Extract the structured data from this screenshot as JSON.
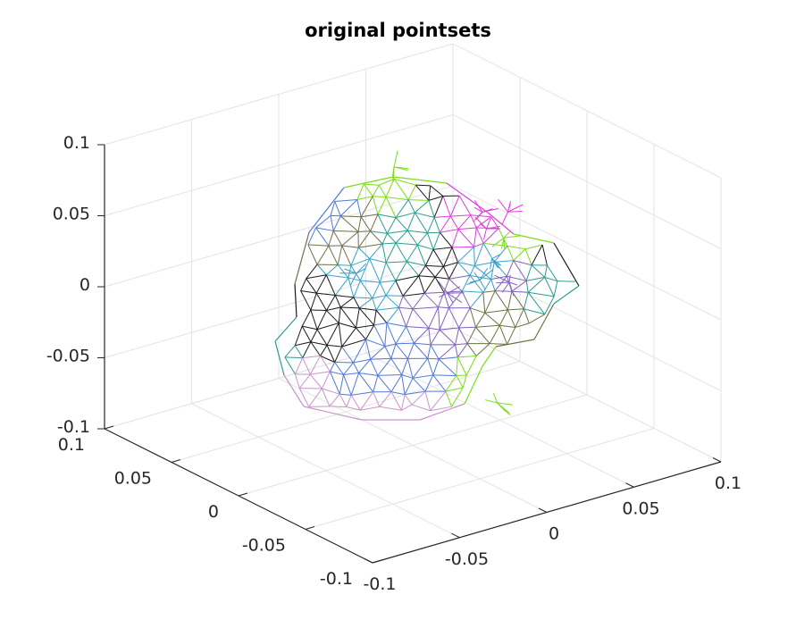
{
  "chart_data": {
    "type": "scatter",
    "subtype": "3d-wireframe-mesh",
    "title": "original pointsets",
    "xlim": [
      -0.1,
      0.1
    ],
    "ylim": [
      -0.1,
      0.1
    ],
    "zlim": [
      -0.1,
      0.1
    ],
    "x_ticks": [
      -0.1,
      -0.05,
      0,
      0.05,
      0.1
    ],
    "y_ticks": [
      -0.1,
      -0.05,
      0,
      0.05,
      0.1
    ],
    "z_ticks": [
      -0.1,
      -0.05,
      0,
      0.05,
      0.1
    ],
    "x_tick_labels": [
      "-0.1",
      "-0.05",
      "0",
      "0.05",
      "0.1"
    ],
    "y_tick_labels": [
      "-0.1",
      "-0.05",
      "0",
      "0.05",
      "0.1"
    ],
    "z_tick_labels": [
      "-0.1",
      "-0.05",
      "0",
      "0.05",
      "0.1"
    ],
    "grid": true,
    "box": "open-3d-axes",
    "series_colors": [
      "#1a1a1a",
      "#3aa0c8",
      "#2a9d8f",
      "#6f6f45",
      "#c896c8",
      "#5078d8",
      "#e23ce2",
      "#7cdc1c",
      "#8060c0"
    ],
    "mesh_regions": [
      {
        "name": "black",
        "color": "#1a1a1a",
        "points": [
          [
            -0.03,
            0.02,
            0.0
          ],
          [
            0.05,
            0.04,
            0.06
          ],
          [
            0.02,
            -0.09,
            0.07
          ],
          [
            0.0,
            -0.02,
            0.03
          ]
        ]
      },
      {
        "name": "cyan",
        "color": "#3aa0c8",
        "points": [
          [
            -0.04,
            -0.01,
            0.04
          ],
          [
            0.0,
            -0.05,
            0.04
          ],
          [
            0.03,
            -0.02,
            0.03
          ]
        ]
      },
      {
        "name": "teal",
        "color": "#2a9d8f",
        "points": [
          [
            -0.06,
            0.04,
            -0.04
          ],
          [
            0.02,
            0.03,
            0.02
          ],
          [
            0.06,
            -0.02,
            0.0
          ],
          [
            0.04,
            -0.07,
            0.02
          ]
        ]
      },
      {
        "name": "olive",
        "color": "#6f6f45",
        "points": [
          [
            -0.02,
            -0.09,
            0.05
          ],
          [
            0.0,
            0.05,
            0.02
          ],
          [
            0.05,
            -0.04,
            -0.03
          ]
        ]
      },
      {
        "name": "pink",
        "color": "#c896c8",
        "points": [
          [
            -0.09,
            -0.02,
            -0.03
          ],
          [
            -0.06,
            -0.06,
            -0.03
          ]
        ]
      },
      {
        "name": "blue",
        "color": "#5078d8",
        "points": [
          [
            -0.02,
            0.04,
            0.05
          ],
          [
            -0.06,
            -0.06,
            0.0
          ]
        ]
      },
      {
        "name": "magenta",
        "color": "#e23ce2",
        "points": [
          [
            0.04,
            0.0,
            0.05
          ],
          [
            0.07,
            0.02,
            0.03
          ],
          [
            0.05,
            0.01,
            0.03
          ]
        ]
      },
      {
        "name": "green",
        "color": "#7cdc1c",
        "points": [
          [
            0.06,
            0.01,
            0.02
          ],
          [
            0.01,
            -0.05,
            -0.05
          ],
          [
            0.02,
            0.04,
            0.07
          ]
        ]
      },
      {
        "name": "purple",
        "color": "#8060c0",
        "points": [
          [
            0.04,
            -0.02,
            0.01
          ],
          [
            0.02,
            0.0,
            0.0
          ]
        ]
      }
    ]
  }
}
